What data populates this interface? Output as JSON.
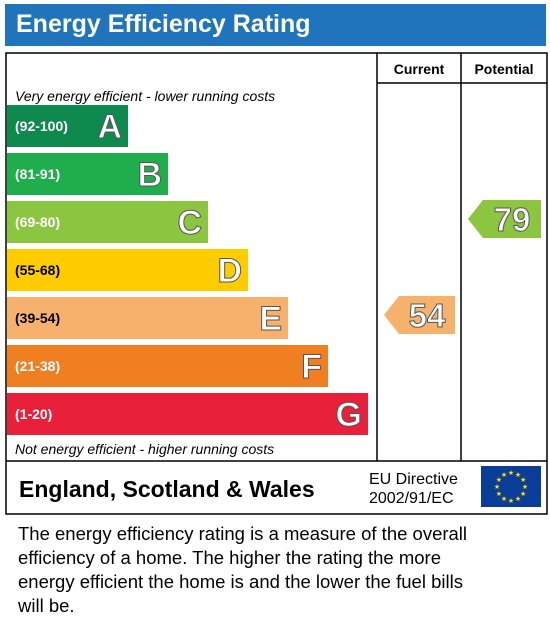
{
  "header": {
    "title": "Energy Efficiency Rating"
  },
  "columns": {
    "current": "Current",
    "potential": "Potential"
  },
  "top_note": "Very energy efficient - lower running costs",
  "bottom_note": "Not energy efficient - higher running costs",
  "region": "England, Scotland & Wales",
  "directive": {
    "line1": "EU Directive",
    "line2": "2002/91/EC"
  },
  "flag_icon": "eu-flag-icon",
  "footnote": "The energy efficiency rating is a measure of the overall efficiency of a home. The higher the rating the more energy efficient the home is and the lower the fuel bills will be.",
  "chart_data": {
    "type": "bar",
    "categories": [
      "A",
      "B",
      "C",
      "D",
      "E",
      "F",
      "G"
    ],
    "ranges": [
      "(92-100)",
      "(81-91)",
      "(69-80)",
      "(55-68)",
      "(39-54)",
      "(21-38)",
      "(1-20)"
    ],
    "colors": [
      "#0f8a4e",
      "#20ae4c",
      "#8cc540",
      "#ffcc00",
      "#f6b16c",
      "#f07f22",
      "#e9203a"
    ],
    "current": {
      "value": 54,
      "band": "E",
      "color": "#f6b16c"
    },
    "potential": {
      "value": 79,
      "band": "C",
      "color": "#8cc540"
    }
  }
}
